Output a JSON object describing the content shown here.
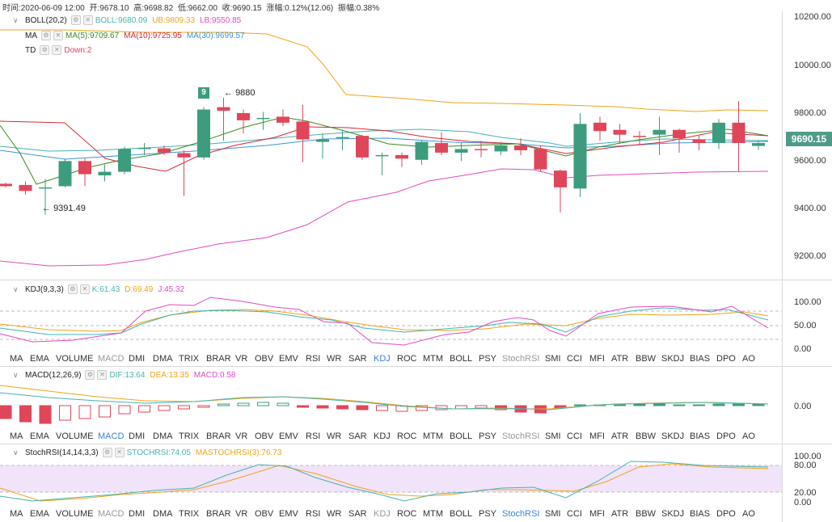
{
  "header": {
    "time": "时间:2020-06-09 12:00",
    "open": "开:9678.10",
    "high": "高:9698.82",
    "low": "低:9662.00",
    "close": "收:9690.15",
    "change": "涨幅:0.12%(12.06)",
    "amplitude": "振幅:0.38%"
  },
  "main_indicators": {
    "boll": {
      "name": "BOLL(20,2)",
      "boll": "BOLL:9680.09",
      "ub": "UB:9809.33",
      "lb": "LB:9550.85"
    },
    "ma": {
      "name": "MA",
      "ma5": "MA(5):9709.67",
      "ma10": "MA(10):9725.95",
      "ma30": "MA(30):9699.57"
    },
    "td": {
      "name": "TD",
      "down": "Down:2"
    }
  },
  "price_axis": {
    "ticks": [
      "10200.00",
      "10000.00",
      "9800.00",
      "9600.00",
      "9400.00",
      "9200.00"
    ],
    "current": "9690.15"
  },
  "annotations": {
    "high_label": "9880",
    "low_label": "9391.49",
    "td_count": "9"
  },
  "kdj": {
    "name": "KDJ(9,3,3)",
    "k": "K:61.43",
    "d": "D:69.49",
    "j": "J:45.32",
    "ticks": [
      "100.00",
      "50.00",
      "0.00"
    ]
  },
  "macd": {
    "name": "MACD(12,26,9)",
    "dif": "DIF:13.64",
    "dea": "DEA:13.35",
    "macd": "MACD:0.58",
    "ticks": [
      "0.00"
    ]
  },
  "stochrsi": {
    "name": "StochRSI(14,14,3,3)",
    "stoch": "STOCHRSI:74.05",
    "ma": "MASTOCHRSI(3):76.73",
    "ticks": [
      "100.00",
      "80.00",
      "20.00",
      "0.00"
    ]
  },
  "indicator_tabs": [
    "MA",
    "EMA",
    "VOLUME",
    "MACD",
    "DMI",
    "DMA",
    "TRIX",
    "BRAR",
    "VR",
    "OBV",
    "EMV",
    "RSI",
    "WR",
    "SAR",
    "KDJ",
    "ROC",
    "MTM",
    "BOLL",
    "PSY",
    "StochRSI",
    "SMI",
    "CCI",
    "MFI",
    "ATR",
    "BBW",
    "SKDJ",
    "BIAS",
    "DPO",
    "AO"
  ],
  "colors": {
    "up": "#3d9c7e",
    "down": "#e0465a",
    "boll_mid": "#45b3b0",
    "ub": "#f0a31a",
    "lb": "#e24bc0",
    "ma5": "#3a8a1f",
    "ma10": "#d9273a",
    "ma30": "#3b95d6",
    "tab_active": "#3b82d6"
  },
  "chart_data": {
    "type": "candlestick",
    "candles": [
      {
        "o": 9520,
        "c": 9510,
        "h": 9525,
        "l": 9505
      },
      {
        "o": 9515,
        "c": 9490,
        "h": 9530,
        "l": 9475
      },
      {
        "o": 9500,
        "c": 9505,
        "h": 9540,
        "l": 9391
      },
      {
        "o": 9510,
        "c": 9615,
        "h": 9625,
        "l": 9505
      },
      {
        "o": 9615,
        "c": 9560,
        "h": 9625,
        "l": 9510
      },
      {
        "o": 9555,
        "c": 9570,
        "h": 9600,
        "l": 9530
      },
      {
        "o": 9570,
        "c": 9665,
        "h": 9675,
        "l": 9560
      },
      {
        "o": 9665,
        "c": 9670,
        "h": 9690,
        "l": 9640
      },
      {
        "o": 9668,
        "c": 9650,
        "h": 9680,
        "l": 9640
      },
      {
        "o": 9648,
        "c": 9630,
        "h": 9660,
        "l": 9470
      },
      {
        "o": 9630,
        "c": 9830,
        "h": 9840,
        "l": 9620
      },
      {
        "o": 9840,
        "c": 9825,
        "h": 9880,
        "l": 9700
      },
      {
        "o": 9815,
        "c": 9785,
        "h": 9830,
        "l": 9730
      },
      {
        "o": 9790,
        "c": 9795,
        "h": 9820,
        "l": 9745
      },
      {
        "o": 9800,
        "c": 9775,
        "h": 9830,
        "l": 9760
      },
      {
        "o": 9780,
        "c": 9705,
        "h": 9850,
        "l": 9610
      },
      {
        "o": 9695,
        "c": 9705,
        "h": 9730,
        "l": 9625
      },
      {
        "o": 9710,
        "c": 9715,
        "h": 9745,
        "l": 9660
      },
      {
        "o": 9720,
        "c": 9630,
        "h": 9725,
        "l": 9620
      },
      {
        "o": 9635,
        "c": 9640,
        "h": 9650,
        "l": 9555
      },
      {
        "o": 9640,
        "c": 9625,
        "h": 9650,
        "l": 9590
      },
      {
        "o": 9620,
        "c": 9695,
        "h": 9700,
        "l": 9600
      },
      {
        "o": 9690,
        "c": 9650,
        "h": 9735,
        "l": 9640
      },
      {
        "o": 9650,
        "c": 9665,
        "h": 9690,
        "l": 9615
      },
      {
        "o": 9665,
        "c": 9660,
        "h": 9700,
        "l": 9630
      },
      {
        "o": 9655,
        "c": 9680,
        "h": 9695,
        "l": 9640
      },
      {
        "o": 9680,
        "c": 9660,
        "h": 9710,
        "l": 9640
      },
      {
        "o": 9665,
        "c": 9580,
        "h": 9680,
        "l": 9570
      },
      {
        "o": 9575,
        "c": 9505,
        "h": 9580,
        "l": 9400
      },
      {
        "o": 9500,
        "c": 9770,
        "h": 9815,
        "l": 9465
      },
      {
        "o": 9775,
        "c": 9740,
        "h": 9800,
        "l": 9700
      },
      {
        "o": 9745,
        "c": 9725,
        "h": 9770,
        "l": 9690
      },
      {
        "o": 9720,
        "c": 9715,
        "h": 9740,
        "l": 9680
      },
      {
        "o": 9725,
        "c": 9745,
        "h": 9800,
        "l": 9640
      },
      {
        "o": 9745,
        "c": 9710,
        "h": 9750,
        "l": 9650
      },
      {
        "o": 9705,
        "c": 9690,
        "h": 9720,
        "l": 9660
      },
      {
        "o": 9690,
        "c": 9775,
        "h": 9790,
        "l": 9665
      },
      {
        "o": 9775,
        "c": 9690,
        "h": 9865,
        "l": 9570
      },
      {
        "o": 9678,
        "c": 9690,
        "h": 9699,
        "l": 9662
      }
    ],
    "ylim": [
      9120,
      10240
    ]
  }
}
